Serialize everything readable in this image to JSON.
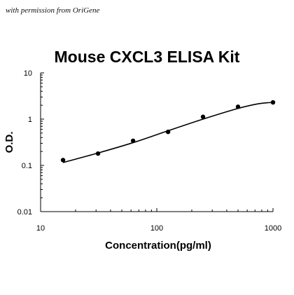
{
  "header": {
    "permission_note": "with permission from OriGene"
  },
  "chart_data": {
    "type": "scatter",
    "title": "Mouse CXCL3 ELISA Kit",
    "xlabel": "Concentration(pg/ml)",
    "ylabel": "O.D.",
    "x_scale": "log",
    "y_scale": "log",
    "xlim": [
      10,
      1000
    ],
    "ylim": [
      0.01,
      10
    ],
    "x_ticks": [
      "10",
      "100",
      "1000"
    ],
    "y_ticks": [
      "10",
      "1",
      "0.1",
      "0.01"
    ],
    "grid": false,
    "legend": "none",
    "series": [
      {
        "points": [
          {
            "x": 15.6,
            "y": 0.13
          },
          {
            "x": 31.2,
            "y": 0.18
          },
          {
            "x": 62.5,
            "y": 0.34
          },
          {
            "x": 125,
            "y": 0.53
          },
          {
            "x": 250,
            "y": 1.12
          },
          {
            "x": 500,
            "y": 1.85
          },
          {
            "x": 1000,
            "y": 2.3
          }
        ]
      }
    ],
    "fit_curve": [
      {
        "x": 15.6,
        "y": 0.115
      },
      {
        "x": 31.2,
        "y": 0.185
      },
      {
        "x": 62.5,
        "y": 0.31
      },
      {
        "x": 125,
        "y": 0.56
      },
      {
        "x": 250,
        "y": 1.0
      },
      {
        "x": 500,
        "y": 1.7
      },
      {
        "x": 750,
        "y": 2.15
      },
      {
        "x": 1000,
        "y": 2.3
      }
    ]
  }
}
